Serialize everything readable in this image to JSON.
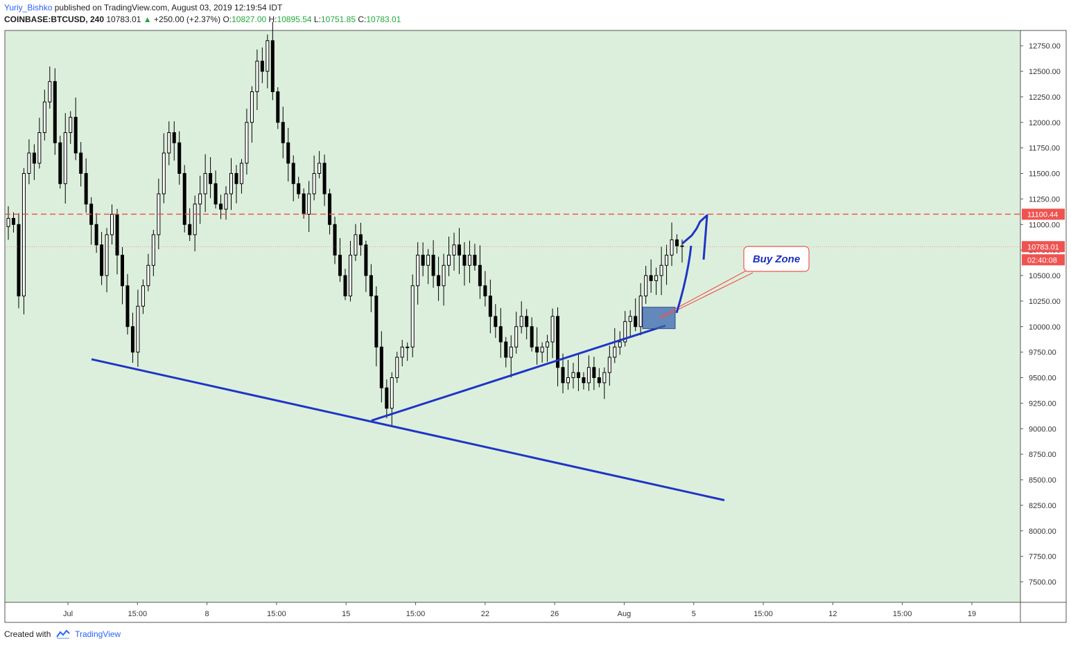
{
  "header": {
    "user": "Yuriy_Bishko",
    "published_text": "published on TradingView.com, August 03, 2019 12:19:54 IDT",
    "symbol": "COINBASE:BTCUSD, 240",
    "last": "10783.01",
    "change": "+250.00 (+2.37%)",
    "o_label": "O:",
    "o": "10827.00",
    "h_label": "H:",
    "h": "10895.54",
    "l_label": "L:",
    "l": "10751.85",
    "c_label": "C:",
    "c": "10783.01"
  },
  "footer": {
    "created_with": "Created with",
    "brand": "TradingView"
  },
  "colors": {
    "chart_bg": "#dcefdc",
    "candle": "#000000",
    "trend_line": "#1f35c5",
    "resistance": "#ef5350",
    "price_tag": "#ef5350",
    "buy_zone_fill": "#3b66b0",
    "buy_zone_label": "#1a2fbf"
  },
  "chart_data": {
    "type": "candlestick",
    "title": "COINBASE:BTCUSD, 240",
    "ylim": [
      7300,
      12900
    ],
    "y_ticks": [
      "12750.00",
      "12500.00",
      "12250.00",
      "12000.00",
      "11750.00",
      "11500.00",
      "11250.00",
      "11000.00",
      "10750.00",
      "10500.00",
      "10250.00",
      "10000.00",
      "9750.00",
      "9500.00",
      "9250.00",
      "9000.00",
      "8750.00",
      "8500.00",
      "8250.00",
      "8000.00",
      "7750.00",
      "7500.00"
    ],
    "x_ticks": [
      "Jul",
      "15:00",
      "8",
      "15:00",
      "15",
      "15:00",
      "22",
      "26",
      "Aug",
      "5",
      "15:00",
      "12",
      "15:00",
      "19"
    ],
    "resistance_level": 11100.44,
    "resistance_label": "11100.44",
    "current_price": 10783.01,
    "current_price_label": "10783.01",
    "countdown_label": "02:40:08",
    "annotation": {
      "text": "Buy Zone",
      "zone_low": 9980,
      "zone_high": 10190
    },
    "trendlines": [
      {
        "name": "lower-trendline",
        "from": 9680,
        "to": 8300
      },
      {
        "name": "rising-trendline",
        "from": 9080,
        "to": 10010
      }
    ],
    "closes": [
      11060,
      11000,
      10300,
      11500,
      11700,
      11600,
      11900,
      12200,
      12400,
      11800,
      11400,
      11900,
      12050,
      11700,
      11500,
      11200,
      11000,
      10800,
      10500,
      10900,
      11100,
      10700,
      10400,
      10000,
      9750,
      10200,
      10400,
      10600,
      10900,
      11300,
      11700,
      11900,
      11800,
      11500,
      11000,
      10900,
      11200,
      11300,
      11500,
      11400,
      11200,
      11150,
      11300,
      11500,
      11400,
      11600,
      12000,
      12300,
      12600,
      12500,
      12800,
      12300,
      12000,
      11800,
      11600,
      11400,
      11300,
      11100,
      11300,
      11500,
      11600,
      11300,
      11000,
      10700,
      10500,
      10300,
      10700,
      10900,
      10800,
      10500,
      10300,
      9800,
      9400,
      9200,
      9500,
      9700,
      9800,
      9800,
      10400,
      10700,
      10600,
      10700,
      10500,
      10400,
      10600,
      10700,
      10800,
      10700,
      10600,
      10700,
      10600,
      10400,
      10300,
      10100,
      10000,
      9850,
      9700,
      9800,
      10000,
      10100,
      10000,
      9800,
      9750,
      9800,
      9850,
      10100,
      9600,
      9450,
      9500,
      9550,
      9500,
      9450,
      9600,
      9500,
      9450,
      9550,
      9700,
      9800,
      9850,
      10050,
      10100,
      10000,
      10300,
      10500,
      10450,
      10500,
      10600,
      10700,
      10850,
      10790,
      10783
    ],
    "x": [],
    "xlabel": "",
    "ylabel": ""
  }
}
